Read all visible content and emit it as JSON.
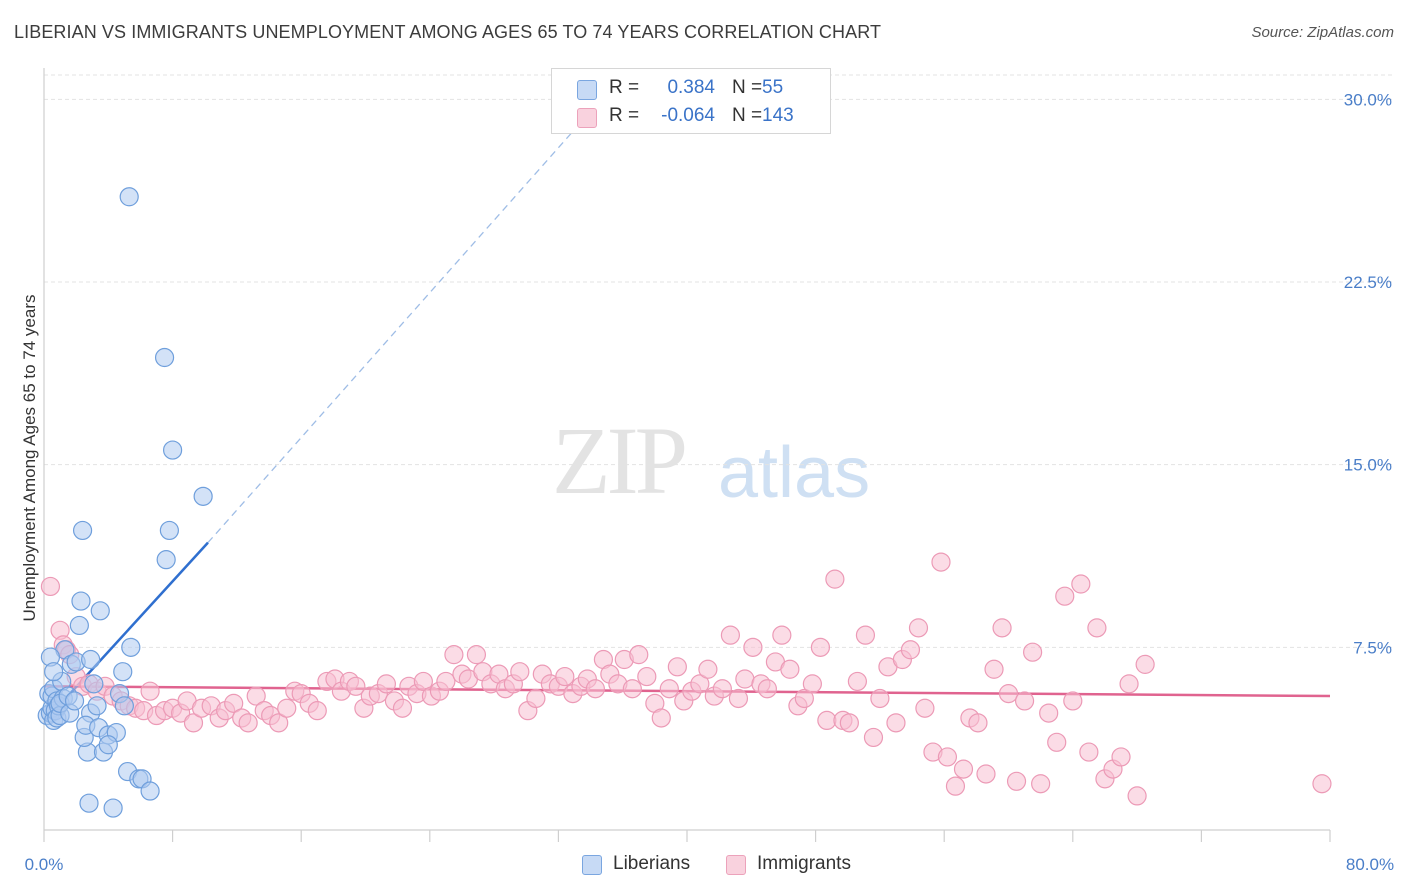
{
  "header": {
    "title": "LIBERIAN VS IMMIGRANTS UNEMPLOYMENT AMONG AGES 65 TO 74 YEARS CORRELATION CHART",
    "source": "Source: ZipAtlas.com"
  },
  "watermark": {
    "zip": "ZIP",
    "atlas": "atlas"
  },
  "legend_top": {
    "rows": [
      {
        "r_key": "R =",
        "r_val": "0.384",
        "n_key": "N =",
        "n_val": "55",
        "color": "#aecbf0"
      },
      {
        "r_key": "R =",
        "r_val": "-0.064",
        "n_key": "N =",
        "n_val": "143",
        "color": "#f7c0d1"
      }
    ]
  },
  "legend_bottom": [
    {
      "label": "Liberians",
      "color": "#aecbf0"
    },
    {
      "label": "Immigrants",
      "color": "#f7c0d1"
    }
  ],
  "chart_data": {
    "type": "scatter",
    "title": "LIBERIAN VS IMMIGRANTS UNEMPLOYMENT AMONG AGES 65 TO 74 YEARS CORRELATION CHART",
    "xlabel": "",
    "ylabel": "Unemployment Among Ages 65 to 74 years",
    "xlim": [
      0,
      80
    ],
    "ylim": [
      0,
      31
    ],
    "x_tick_labels": [
      "0.0%",
      "80.0%"
    ],
    "y_ticks": [
      7.5,
      15.0,
      22.5,
      30.0
    ],
    "y_tick_labels": [
      "7.5%",
      "15.0%",
      "22.5%",
      "30.0%"
    ],
    "grid": true,
    "legend_position": "top-center",
    "colors": {
      "liberians": "#4a86d8",
      "liberians_fill": "#aecbf0",
      "immigrants": "#e0638f",
      "immigrants_fill": "#f7c0d1"
    },
    "series": [
      {
        "name": "Liberians",
        "R": 0.384,
        "N": 55,
        "trend": {
          "x": [
            0.1,
            10.2
          ],
          "y": [
            4.5,
            11.8
          ],
          "extended_x": [
            10.2,
            34
          ],
          "extended_y": [
            11.8,
            29.5
          ]
        },
        "points": [
          [
            0.2,
            4.7
          ],
          [
            0.3,
            5.6
          ],
          [
            0.4,
            4.8
          ],
          [
            0.5,
            5.0
          ],
          [
            0.5,
            5.5
          ],
          [
            0.6,
            4.5
          ],
          [
            0.6,
            5.8
          ],
          [
            0.7,
            4.9
          ],
          [
            0.8,
            5.3
          ],
          [
            0.8,
            4.6
          ],
          [
            0.9,
            5.1
          ],
          [
            1.0,
            4.7
          ],
          [
            1.1,
            6.1
          ],
          [
            1.2,
            5.4
          ],
          [
            1.3,
            7.4
          ],
          [
            0.4,
            7.1
          ],
          [
            0.6,
            6.5
          ],
          [
            1.0,
            5.2
          ],
          [
            1.5,
            5.5
          ],
          [
            1.6,
            4.8
          ],
          [
            1.7,
            6.8
          ],
          [
            1.9,
            5.3
          ],
          [
            2.0,
            6.9
          ],
          [
            2.2,
            8.4
          ],
          [
            2.3,
            9.4
          ],
          [
            2.4,
            12.3
          ],
          [
            2.7,
            3.2
          ],
          [
            2.8,
            1.1
          ],
          [
            2.9,
            4.8
          ],
          [
            3.1,
            6.0
          ],
          [
            2.5,
            3.8
          ],
          [
            2.6,
            4.3
          ],
          [
            2.9,
            7.0
          ],
          [
            3.3,
            5.1
          ],
          [
            3.4,
            4.2
          ],
          [
            3.5,
            9.0
          ],
          [
            3.7,
            3.2
          ],
          [
            4.0,
            3.9
          ],
          [
            4.3,
            0.9
          ],
          [
            4.5,
            4.0
          ],
          [
            4.0,
            3.5
          ],
          [
            4.7,
            5.6
          ],
          [
            4.9,
            6.5
          ],
          [
            5.0,
            5.1
          ],
          [
            5.2,
            2.4
          ],
          [
            5.4,
            7.5
          ],
          [
            5.3,
            26.0
          ],
          [
            5.9,
            2.1
          ],
          [
            6.1,
            2.1
          ],
          [
            6.6,
            1.6
          ],
          [
            7.5,
            19.4
          ],
          [
            7.6,
            11.1
          ],
          [
            7.8,
            12.3
          ],
          [
            8.0,
            15.6
          ],
          [
            9.9,
            13.7
          ]
        ]
      },
      {
        "name": "Immigrants",
        "R": -0.064,
        "N": 143,
        "trend": {
          "x": [
            0,
            80
          ],
          "y": [
            5.9,
            5.5
          ]
        },
        "points": [
          [
            0.4,
            10.0
          ],
          [
            1.0,
            8.2
          ],
          [
            1.2,
            7.6
          ],
          [
            1.4,
            7.4
          ],
          [
            1.6,
            7.2
          ],
          [
            2.0,
            6.3
          ],
          [
            2.4,
            5.9
          ],
          [
            2.8,
            6.0
          ],
          [
            3.3,
            5.7
          ],
          [
            3.8,
            5.9
          ],
          [
            4.3,
            5.5
          ],
          [
            4.8,
            5.3
          ],
          [
            5.3,
            5.1
          ],
          [
            5.7,
            5.0
          ],
          [
            6.2,
            4.9
          ],
          [
            6.6,
            5.7
          ],
          [
            7.0,
            4.7
          ],
          [
            7.5,
            4.9
          ],
          [
            8.0,
            5.0
          ],
          [
            8.5,
            4.8
          ],
          [
            8.9,
            5.3
          ],
          [
            9.3,
            4.4
          ],
          [
            9.8,
            5.0
          ],
          [
            10.4,
            5.1
          ],
          [
            10.9,
            4.6
          ],
          [
            11.3,
            4.9
          ],
          [
            11.8,
            5.2
          ],
          [
            12.3,
            4.6
          ],
          [
            12.7,
            4.4
          ],
          [
            13.2,
            5.5
          ],
          [
            13.7,
            4.9
          ],
          [
            14.1,
            4.7
          ],
          [
            14.6,
            4.4
          ],
          [
            15.1,
            5.0
          ],
          [
            15.6,
            5.7
          ],
          [
            16.0,
            5.6
          ],
          [
            16.5,
            5.2
          ],
          [
            17.0,
            4.9
          ],
          [
            17.6,
            6.1
          ],
          [
            18.1,
            6.2
          ],
          [
            18.5,
            5.7
          ],
          [
            19.0,
            6.1
          ],
          [
            19.4,
            5.9
          ],
          [
            19.9,
            5.0
          ],
          [
            20.3,
            5.5
          ],
          [
            20.8,
            5.6
          ],
          [
            21.3,
            6.0
          ],
          [
            21.8,
            5.3
          ],
          [
            22.3,
            5.0
          ],
          [
            22.7,
            5.9
          ],
          [
            23.2,
            5.6
          ],
          [
            23.6,
            6.1
          ],
          [
            24.1,
            5.5
          ],
          [
            24.6,
            5.7
          ],
          [
            25.0,
            6.1
          ],
          [
            25.5,
            7.2
          ],
          [
            26.0,
            6.4
          ],
          [
            26.4,
            6.2
          ],
          [
            26.9,
            7.2
          ],
          [
            27.3,
            6.5
          ],
          [
            27.8,
            6.0
          ],
          [
            28.3,
            6.4
          ],
          [
            28.7,
            5.8
          ],
          [
            29.2,
            6.0
          ],
          [
            29.6,
            6.5
          ],
          [
            30.1,
            4.9
          ],
          [
            30.6,
            5.4
          ],
          [
            31.0,
            6.4
          ],
          [
            31.5,
            6.0
          ],
          [
            32.0,
            5.9
          ],
          [
            32.4,
            6.3
          ],
          [
            32.9,
            5.6
          ],
          [
            33.4,
            5.9
          ],
          [
            33.8,
            6.2
          ],
          [
            34.3,
            5.8
          ],
          [
            34.8,
            7.0
          ],
          [
            35.2,
            6.4
          ],
          [
            35.7,
            6.0
          ],
          [
            36.1,
            7.0
          ],
          [
            36.6,
            5.8
          ],
          [
            37.0,
            7.2
          ],
          [
            37.5,
            6.3
          ],
          [
            38.0,
            5.2
          ],
          [
            38.4,
            4.6
          ],
          [
            38.9,
            5.8
          ],
          [
            39.4,
            6.7
          ],
          [
            39.8,
            5.3
          ],
          [
            40.3,
            5.7
          ],
          [
            40.8,
            6.0
          ],
          [
            41.3,
            6.6
          ],
          [
            41.7,
            5.5
          ],
          [
            42.2,
            5.8
          ],
          [
            42.7,
            8.0
          ],
          [
            43.2,
            5.4
          ],
          [
            43.6,
            6.2
          ],
          [
            44.1,
            7.5
          ],
          [
            44.6,
            6.0
          ],
          [
            45.0,
            5.8
          ],
          [
            45.5,
            6.9
          ],
          [
            45.9,
            8.0
          ],
          [
            46.4,
            6.6
          ],
          [
            46.9,
            5.1
          ],
          [
            47.3,
            5.4
          ],
          [
            47.8,
            6.0
          ],
          [
            48.3,
            7.5
          ],
          [
            48.7,
            4.5
          ],
          [
            49.2,
            10.3
          ],
          [
            49.7,
            4.5
          ],
          [
            50.1,
            4.4
          ],
          [
            50.6,
            6.1
          ],
          [
            51.1,
            8.0
          ],
          [
            51.6,
            3.8
          ],
          [
            52.0,
            5.4
          ],
          [
            52.5,
            6.7
          ],
          [
            53.0,
            4.4
          ],
          [
            53.4,
            7.0
          ],
          [
            53.9,
            7.4
          ],
          [
            54.4,
            8.3
          ],
          [
            54.8,
            5.0
          ],
          [
            55.3,
            3.2
          ],
          [
            55.8,
            11.0
          ],
          [
            56.2,
            3.0
          ],
          [
            56.7,
            1.8
          ],
          [
            57.2,
            2.5
          ],
          [
            57.6,
            4.6
          ],
          [
            58.1,
            4.4
          ],
          [
            58.6,
            2.3
          ],
          [
            59.1,
            6.6
          ],
          [
            59.6,
            8.3
          ],
          [
            60.0,
            5.6
          ],
          [
            60.5,
            2.0
          ],
          [
            61.0,
            5.3
          ],
          [
            61.5,
            7.3
          ],
          [
            62.0,
            1.9
          ],
          [
            62.5,
            4.8
          ],
          [
            63.0,
            3.6
          ],
          [
            63.5,
            9.6
          ],
          [
            64.0,
            5.3
          ],
          [
            64.5,
            10.1
          ],
          [
            65.0,
            3.2
          ],
          [
            65.5,
            8.3
          ],
          [
            66.0,
            2.1
          ],
          [
            66.5,
            2.5
          ],
          [
            67.0,
            3.0
          ],
          [
            67.5,
            6.0
          ],
          [
            68.0,
            1.4
          ],
          [
            68.5,
            6.8
          ],
          [
            79.5,
            1.9
          ]
        ]
      }
    ]
  }
}
